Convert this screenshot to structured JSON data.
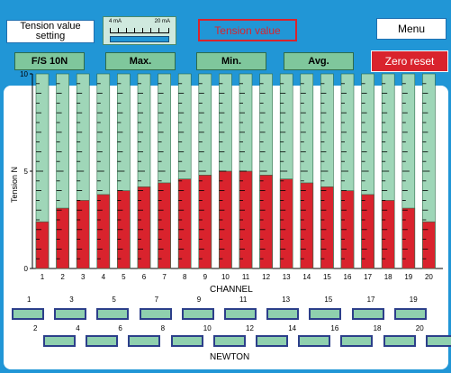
{
  "header": {
    "setting_label": "Tension value setting",
    "meter": {
      "left_label": "4 mA",
      "right_label": "20 mA"
    },
    "tension_value_label": "Tension value",
    "menu_label": "Menu"
  },
  "buttons": {
    "fs_label": "F/S 10N",
    "max_label": "Max.",
    "min_label": "Min.",
    "avg_label": "Avg.",
    "zero_reset_label": "Zero reset"
  },
  "colors": {
    "background": "#2196d6",
    "bar_fill": "#d9232d",
    "bar_empty": "#9fd6b8",
    "slot_fill": "#8fd0ae",
    "slot_border": "#2c3f8a"
  },
  "chart_data": {
    "type": "bar",
    "ylabel": "Tension N",
    "xlabel": "CHANNEL",
    "ylim": [
      0,
      10
    ],
    "y_ticks": [
      "0",
      "5",
      "10"
    ],
    "categories": [
      "1",
      "2",
      "3",
      "4",
      "5",
      "6",
      "7",
      "8",
      "9",
      "10",
      "11",
      "12",
      "13",
      "14",
      "15",
      "16",
      "17",
      "18",
      "19",
      "20"
    ],
    "values": [
      2.4,
      3.1,
      3.5,
      3.8,
      4.0,
      4.2,
      4.4,
      4.6,
      4.8,
      5.0,
      5.0,
      4.8,
      4.6,
      4.4,
      4.2,
      4.0,
      3.8,
      3.5,
      3.1,
      2.4
    ],
    "grid": false
  },
  "newton": {
    "title": "NEWTON",
    "top_row_labels": [
      "1",
      "3",
      "5",
      "7",
      "9",
      "11",
      "13",
      "15",
      "17",
      "19"
    ],
    "bottom_row_labels": [
      "2",
      "4",
      "6",
      "8",
      "10",
      "12",
      "14",
      "16",
      "18",
      "20"
    ]
  }
}
